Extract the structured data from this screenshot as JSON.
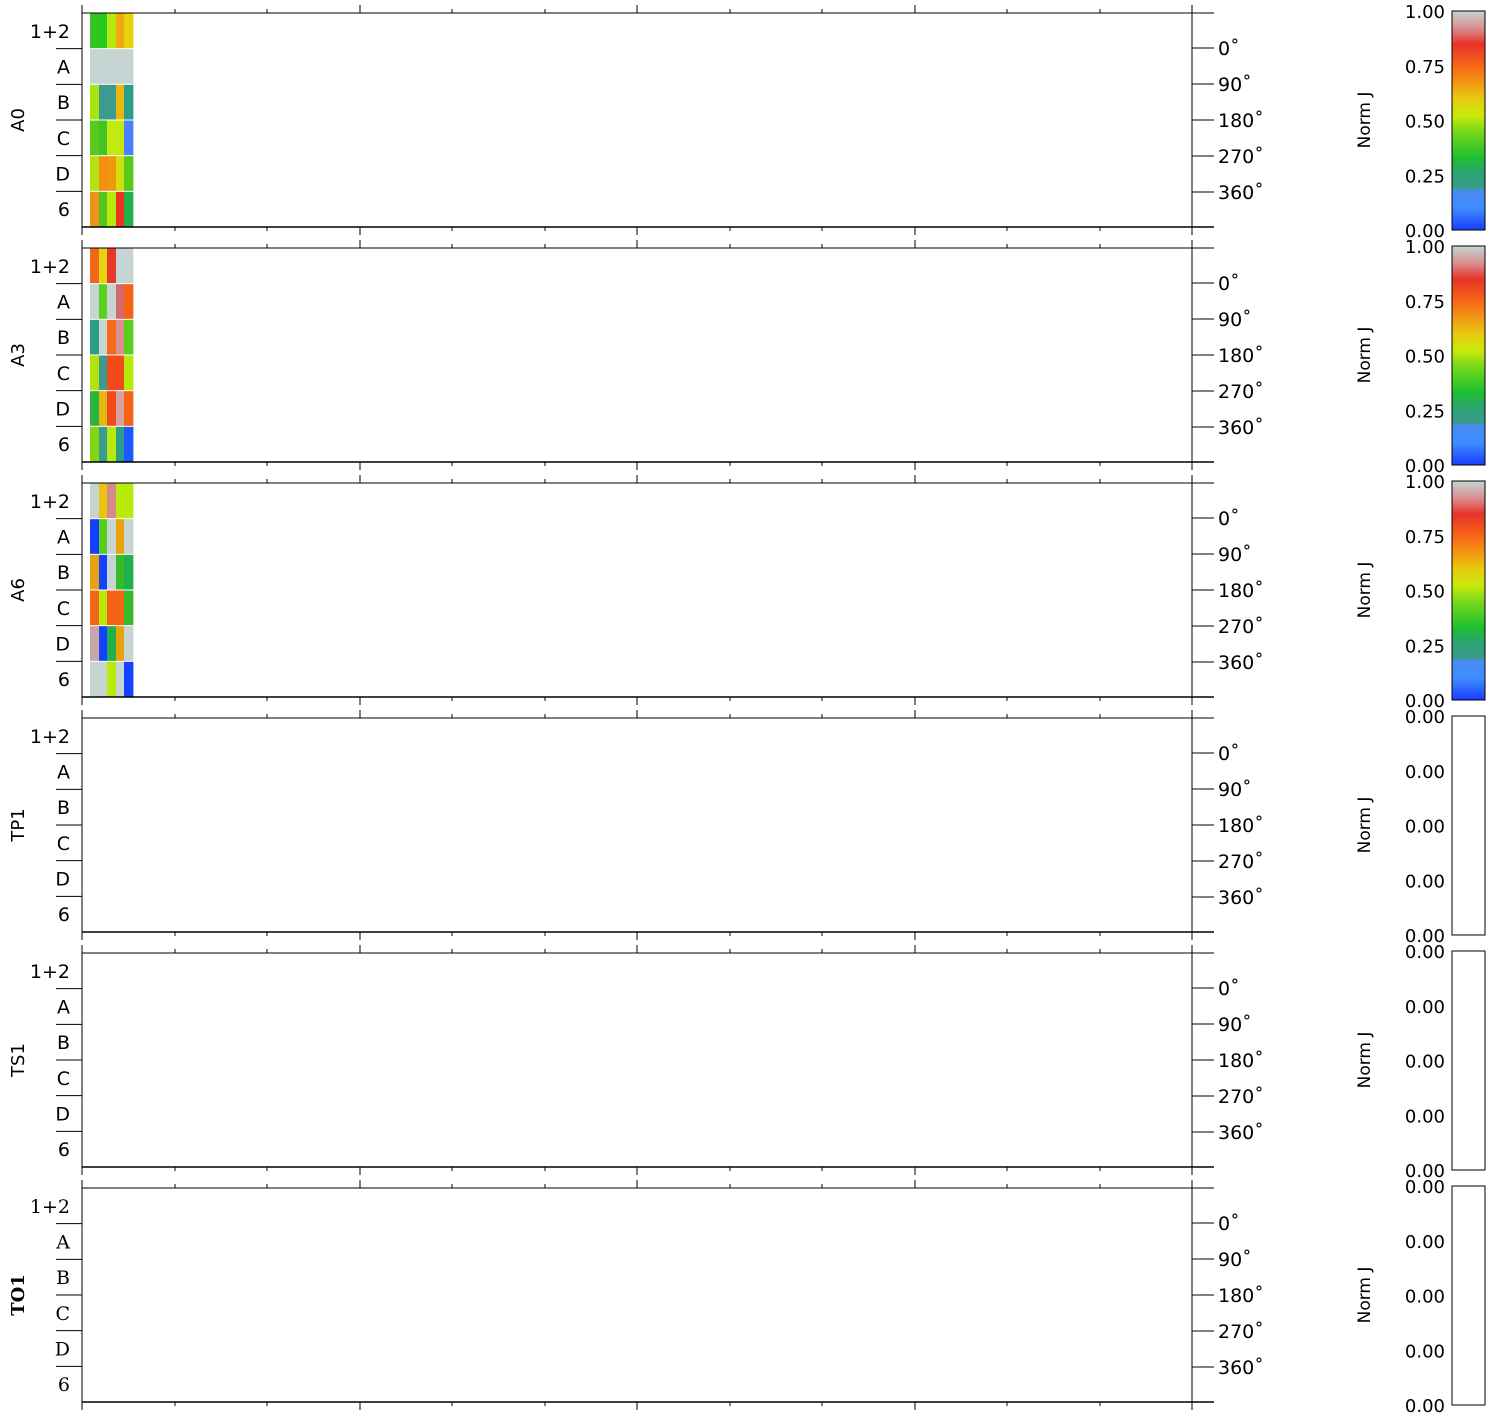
{
  "chart_data": {
    "type": "heatmap",
    "row_labels": [
      "1+2",
      "A",
      "B",
      "C",
      "D",
      "6"
    ],
    "angle_ticks": [
      "0˚",
      "90˚",
      "180˚",
      "270˚",
      "360˚"
    ],
    "colorbar_label": "Norm J",
    "panels": [
      {
        "name": "A0",
        "colorbar_ticks": [
          "1.00",
          "0.75",
          "0.50",
          "0.25",
          "0.00"
        ],
        "colorbar_scale": "rainbow",
        "cells": [
          [
            "#33c41f",
            "#27c820",
            "#b7e80f",
            "#f0a711",
            "#e7d20c"
          ],
          [
            "#c6d4d4",
            "#c6d4d4",
            "#c6d4d4",
            "#c6d4d4",
            "#c6d4d4"
          ],
          [
            "#a8e411",
            "#3a9b8e",
            "#3a9b8e",
            "#e9b80f",
            "#2a9e86"
          ],
          [
            "#5ac91c",
            "#3fc523",
            "#c3ea10",
            "#c3ea10",
            "#4a7fff"
          ],
          [
            "#b2e30f",
            "#f58f12",
            "#ee980f",
            "#cfe00e",
            "#57cb1b"
          ],
          [
            "#f09214",
            "#4ec521",
            "#b8e90c",
            "#eb3424",
            "#21b24e"
          ]
        ]
      },
      {
        "name": "A3",
        "colorbar_ticks": [
          "1.00",
          "0.75",
          "0.50",
          "0.25",
          "0.00"
        ],
        "colorbar_scale": "rainbow",
        "cells": [
          [
            "#f26617",
            "#e4d30e",
            "#e63a26",
            "#c6d4d4",
            "#c6d4d4"
          ],
          [
            "#c6d4d4",
            "#5dd11a",
            "#c6d4d4",
            "#d26a6a",
            "#f46316"
          ],
          [
            "#2a9e86",
            "#c6d4d4",
            "#f46a16",
            "#dd8e8e",
            "#59d01c"
          ],
          [
            "#b7e30d",
            "#3a9b8e",
            "#f24a1a",
            "#f24a1a",
            "#b7e90d"
          ],
          [
            "#2ab33d",
            "#e7b80f",
            "#f24a1a",
            "#d8a0a0",
            "#f46316"
          ],
          [
            "#82d616",
            "#3a9b8e",
            "#b7e90d",
            "#2a9e86",
            "#1d59ff"
          ]
        ]
      },
      {
        "name": "A6",
        "colorbar_ticks": [
          "1.00",
          "0.75",
          "0.50",
          "0.25",
          "0.00"
        ],
        "colorbar_scale": "rainbow",
        "cells": [
          [
            "#c6d4d4",
            "#e8c410",
            "#d28a8a",
            "#b9ea0c",
            "#b9ea0c"
          ],
          [
            "#1440ff",
            "#58cf1b",
            "#c6d4d4",
            "#e8a210",
            "#c6d4d4"
          ],
          [
            "#e8a210",
            "#1440ff",
            "#c6d4d4",
            "#38bb2b",
            "#21b14c"
          ],
          [
            "#f46316",
            "#b9ea0c",
            "#f46316",
            "#f46316",
            "#38bb2b"
          ],
          [
            "#c9a7a7",
            "#1440ff",
            "#22b148",
            "#e8a210",
            "#c6d4d4"
          ],
          [
            "#c6d4d4",
            "#c6d4d4",
            "#b9ea0c",
            "#c6d4d4",
            "#1440ff"
          ]
        ]
      },
      {
        "name": "TP1",
        "colorbar_ticks": [
          "0.00",
          "0.00",
          "0.00",
          "0.00",
          "0.00"
        ],
        "colorbar_scale": "empty",
        "cells": []
      },
      {
        "name": "TS1",
        "colorbar_ticks": [
          "0.00",
          "0.00",
          "0.00",
          "0.00",
          "0.00"
        ],
        "colorbar_scale": "empty",
        "cells": []
      },
      {
        "name": "TO1",
        "colorbar_ticks": [
          "0.00",
          "0.00",
          "0.00",
          "0.00",
          "0.00"
        ],
        "colorbar_scale": "empty",
        "cells": []
      }
    ]
  }
}
